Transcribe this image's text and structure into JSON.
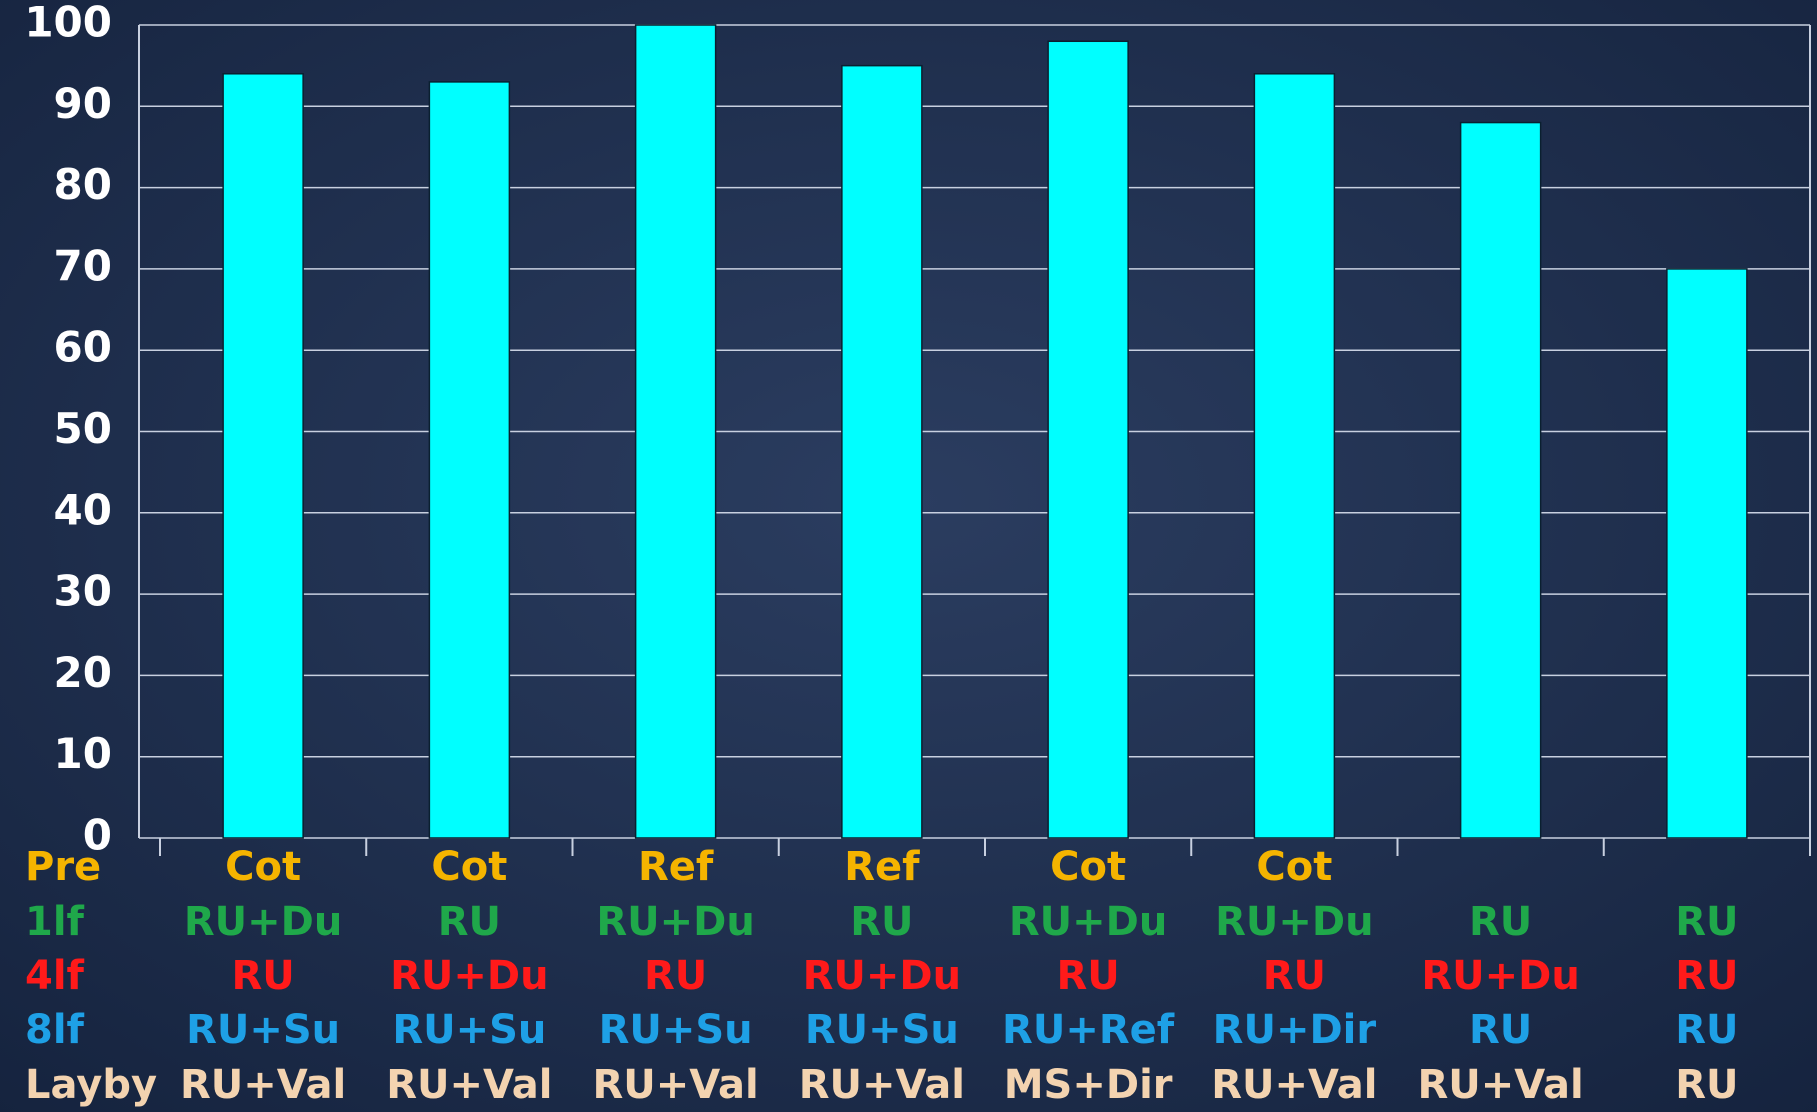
{
  "chart_data": {
    "type": "bar",
    "values": [
      94,
      93,
      100,
      95,
      98,
      94,
      88,
      70
    ],
    "color": "#00ffff",
    "ylim": [
      0,
      100
    ],
    "yticks": [
      0,
      10,
      20,
      30,
      40,
      50,
      60,
      70,
      80,
      90,
      100
    ],
    "grid": true,
    "rows": [
      {
        "name": "Pre",
        "color": "#f5b400",
        "labels": [
          "Cot",
          "Cot",
          "Ref",
          "Ref",
          "Cot",
          "Cot",
          null,
          null
        ]
      },
      {
        "name": "1lf",
        "color": "#1fa84a",
        "labels": [
          "RU+Du",
          "RU",
          "RU+Du",
          "RU",
          "RU+Du",
          "RU+Du",
          "RU",
          "RU"
        ]
      },
      {
        "name": "4lf",
        "color": "#ff1a1a",
        "labels": [
          "RU",
          "RU+Du",
          "RU",
          "RU+Du",
          "RU",
          "RU",
          "RU+Du",
          "RU"
        ]
      },
      {
        "name": "8lf",
        "color": "#1ea0e6",
        "labels": [
          "RU+Su",
          "RU+Su",
          "RU+Su",
          "RU+Su",
          "RU+Ref",
          "RU+Dir",
          "RU",
          "RU"
        ]
      },
      {
        "name": "Layby",
        "color": "#f3d3b0",
        "labels": [
          "RU+Val",
          "RU+Val",
          "RU+Val",
          "RU+Val",
          "MS+Dir",
          "RU+Val",
          "RU+Val",
          "RU"
        ]
      }
    ]
  }
}
